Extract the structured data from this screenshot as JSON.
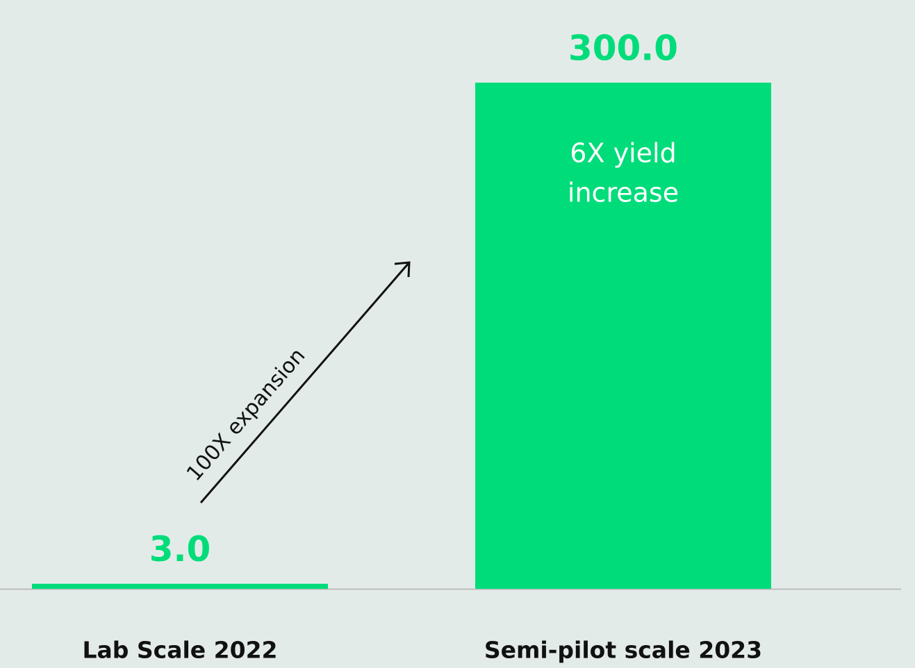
{
  "chart_data": {
    "type": "bar",
    "categories": [
      "Lab Scale 2022",
      "Semi-pilot scale 2023"
    ],
    "values": [
      3,
      300
    ],
    "value_labels": [
      "3.0",
      "300.0"
    ],
    "color": "#00dc7a",
    "ylim": [
      0,
      300
    ],
    "annotations": [
      "100X expansion",
      "6X yield",
      "increase"
    ]
  }
}
